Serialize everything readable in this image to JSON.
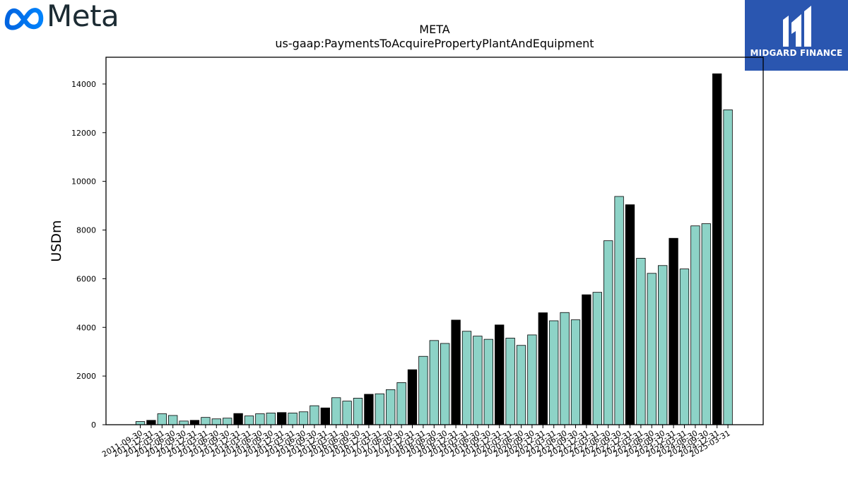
{
  "header": {
    "logo_text": "Meta",
    "badge_text": "MIDGARD FINANCE",
    "colors": {
      "meta_blue": "#0081fb",
      "badge_bg": "#2a56b0"
    }
  },
  "chart_data": {
    "type": "bar",
    "title": "META",
    "subtitle": "us-gaap:PaymentsToAcquirePropertyPlantAndEquipment",
    "ylabel": "USDm",
    "xlabel": "",
    "ylim": [
      0,
      15100
    ],
    "yticks": [
      0,
      2000,
      4000,
      6000,
      8000,
      10000,
      12000,
      14000
    ],
    "grid": false,
    "colors": {
      "quarter": "#8dd3c7",
      "fiscal_year_end": "#000000",
      "edge": "#000000"
    },
    "categories": [
      "2011-09-30",
      "2011-12-31",
      "2012-03-31",
      "2012-06-30",
      "2012-09-30",
      "2012-12-31",
      "2013-03-31",
      "2013-06-30",
      "2013-09-30",
      "2013-12-31",
      "2014-03-31",
      "2014-06-30",
      "2014-09-30",
      "2014-12-31",
      "2015-03-31",
      "2015-06-30",
      "2015-09-30",
      "2015-12-31",
      "2016-03-31",
      "2016-06-30",
      "2016-09-30",
      "2016-12-31",
      "2017-03-31",
      "2017-06-30",
      "2017-09-30",
      "2017-12-31",
      "2018-03-31",
      "2018-06-30",
      "2018-09-30",
      "2018-12-31",
      "2019-03-31",
      "2019-06-30",
      "2019-09-30",
      "2019-12-31",
      "2020-03-31",
      "2020-06-30",
      "2020-09-30",
      "2020-12-31",
      "2021-03-31",
      "2021-06-30",
      "2021-09-30",
      "2021-12-31",
      "2022-03-31",
      "2022-06-30",
      "2022-09-30",
      "2022-12-31",
      "2023-03-31",
      "2023-06-30",
      "2023-09-30",
      "2023-12-31",
      "2024-03-31",
      "2024-06-30",
      "2024-09-30",
      "2024-12-31",
      "2025-03-31"
    ],
    "values": [
      130,
      180,
      450,
      380,
      150,
      180,
      300,
      240,
      270,
      460,
      360,
      450,
      480,
      500,
      480,
      530,
      780,
      690,
      1110,
      970,
      1090,
      1250,
      1270,
      1440,
      1730,
      2260,
      2810,
      3460,
      3340,
      4300,
      3840,
      3640,
      3510,
      4100,
      3560,
      3260,
      3690,
      4600,
      4270,
      4610,
      4310,
      5340,
      5440,
      7560,
      9380,
      9040,
      6840,
      6220,
      6540,
      7660,
      6400,
      8170,
      8260,
      14420,
      12940
    ],
    "highlight": [
      false,
      true,
      false,
      false,
      false,
      true,
      false,
      false,
      false,
      true,
      false,
      false,
      false,
      true,
      false,
      false,
      false,
      true,
      false,
      false,
      false,
      true,
      false,
      false,
      false,
      true,
      false,
      false,
      false,
      true,
      false,
      false,
      false,
      true,
      false,
      false,
      false,
      true,
      false,
      false,
      false,
      true,
      false,
      false,
      false,
      true,
      false,
      false,
      false,
      true,
      false,
      false,
      false,
      true,
      false
    ]
  }
}
